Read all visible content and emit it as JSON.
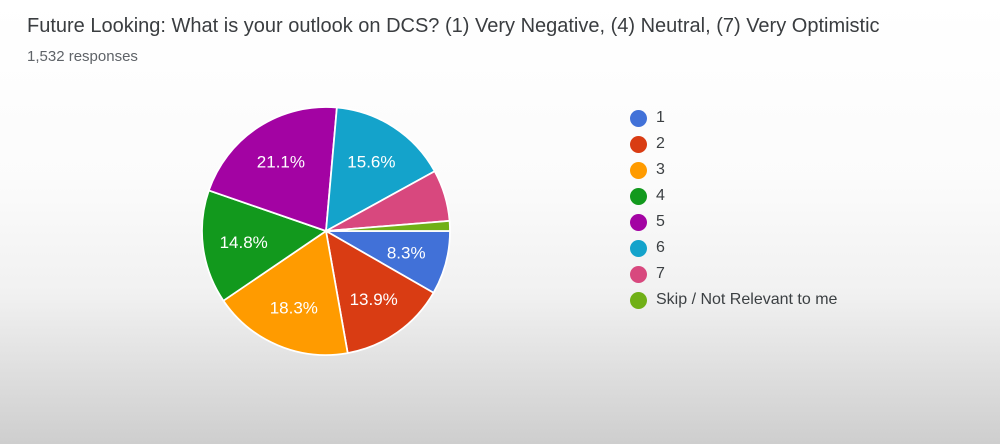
{
  "chart_data": {
    "type": "pie",
    "title": "Future Looking: What is your outlook on DCS? (1) Very Negative, (4) Neutral, (7) Very Optimistic",
    "subtitle": "1,532 responses",
    "total_responses": 1532,
    "legend_position": "right",
    "start_angle_deg": 90,
    "direction": "clockwise",
    "slice_border_color": "#ffffff",
    "label_color": "#ffffff",
    "slices": [
      {
        "name": "1",
        "value": 8.3,
        "label": "8.3%",
        "color": "#4171d8"
      },
      {
        "name": "2",
        "value": 13.9,
        "label": "13.9%",
        "color": "#d93c13"
      },
      {
        "name": "3",
        "value": 18.3,
        "label": "18.3%",
        "color": "#ff9b00"
      },
      {
        "name": "4",
        "value": 14.8,
        "label": "14.8%",
        "color": "#12991d"
      },
      {
        "name": "5",
        "value": 21.1,
        "label": "21.1%",
        "color": "#a303a3"
      },
      {
        "name": "6",
        "value": 15.6,
        "label": "15.6%",
        "color": "#14a3cb"
      },
      {
        "name": "7",
        "value": 6.7,
        "label": "",
        "color": "#d8487e"
      },
      {
        "name": "Skip / Not Relevant to me",
        "value": 1.3,
        "label": "",
        "color": "#70b017"
      }
    ]
  }
}
